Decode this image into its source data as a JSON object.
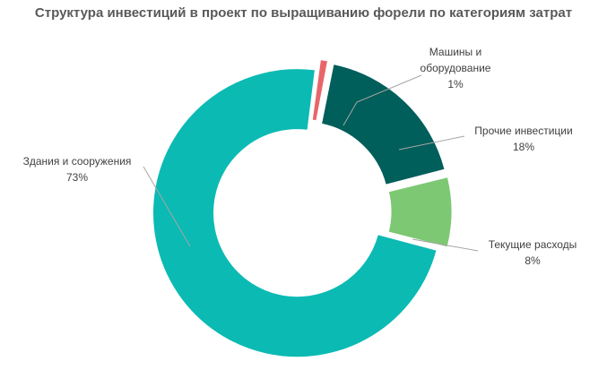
{
  "chart_data": {
    "type": "pie",
    "title": "Структура инвестиций в проект по выращиванию форели по категориям затрат",
    "donut": true,
    "exploded": true,
    "slices": [
      {
        "name": "Машины и оборудование",
        "value": 1,
        "label_lines": [
          "Машины и",
          "оборудование"
        ],
        "value_label": "1%",
        "color": "#E8666A"
      },
      {
        "name": "Прочие инвестиции",
        "value": 18,
        "label_lines": [
          "Прочие инвестиции"
        ],
        "value_label": "18%",
        "color": "#005E5B"
      },
      {
        "name": "Текущие расходы",
        "value": 8,
        "label_lines": [
          "Текущие расходы"
        ],
        "value_label": "8%",
        "color": "#7DC873"
      },
      {
        "name": "Здания и сооружения",
        "value": 73,
        "label_lines": [
          "Здания и сооружения"
        ],
        "value_label": "73%",
        "color": "#0BBAB3"
      }
    ]
  }
}
